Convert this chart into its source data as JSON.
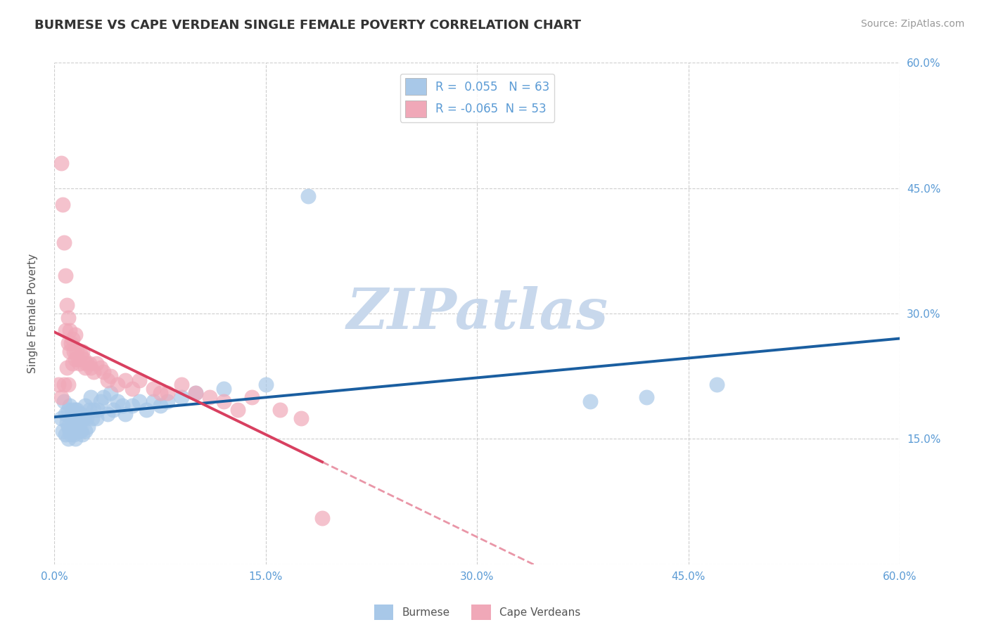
{
  "title": "BURMESE VS CAPE VERDEAN SINGLE FEMALE POVERTY CORRELATION CHART",
  "source": "Source: ZipAtlas.com",
  "ylabel": "Single Female Poverty",
  "xlim": [
    0.0,
    0.6
  ],
  "ylim": [
    0.0,
    0.6
  ],
  "xticks": [
    0.0,
    0.15,
    0.3,
    0.45,
    0.6
  ],
  "xtick_labels": [
    "0.0%",
    "15.0%",
    "30.0%",
    "45.0%",
    "60.0%"
  ],
  "ytick_positions_right": [
    0.15,
    0.3,
    0.45,
    0.6
  ],
  "ytick_labels_right": [
    "15.0%",
    "30.0%",
    "45.0%",
    "60.0%"
  ],
  "burmese_R": 0.055,
  "burmese_N": 63,
  "capeverdean_R": -0.065,
  "capeverdean_N": 53,
  "blue_color": "#A8C8E8",
  "pink_color": "#F0A8B8",
  "blue_line_color": "#1A5EA0",
  "pink_line_color": "#D84060",
  "axis_color": "#5B9BD5",
  "grid_color": "#C8C8C8",
  "watermark": "ZIPatlas",
  "watermark_color": "#C8D8EC",
  "burmese_x": [
    0.005,
    0.006,
    0.007,
    0.008,
    0.008,
    0.009,
    0.01,
    0.01,
    0.01,
    0.011,
    0.011,
    0.012,
    0.012,
    0.013,
    0.013,
    0.014,
    0.014,
    0.015,
    0.015,
    0.015,
    0.016,
    0.016,
    0.017,
    0.017,
    0.018,
    0.018,
    0.019,
    0.019,
    0.02,
    0.02,
    0.021,
    0.022,
    0.022,
    0.023,
    0.024,
    0.025,
    0.026,
    0.027,
    0.028,
    0.03,
    0.031,
    0.033,
    0.035,
    0.038,
    0.04,
    0.042,
    0.045,
    0.048,
    0.05,
    0.055,
    0.06,
    0.065,
    0.07,
    0.075,
    0.08,
    0.09,
    0.1,
    0.12,
    0.15,
    0.18,
    0.38,
    0.42,
    0.47
  ],
  "burmese_y": [
    0.175,
    0.16,
    0.195,
    0.18,
    0.155,
    0.17,
    0.185,
    0.165,
    0.15,
    0.19,
    0.16,
    0.175,
    0.155,
    0.185,
    0.165,
    0.175,
    0.155,
    0.185,
    0.165,
    0.15,
    0.185,
    0.165,
    0.175,
    0.16,
    0.18,
    0.16,
    0.18,
    0.16,
    0.175,
    0.155,
    0.175,
    0.19,
    0.16,
    0.175,
    0.165,
    0.185,
    0.2,
    0.175,
    0.185,
    0.175,
    0.185,
    0.195,
    0.2,
    0.18,
    0.205,
    0.185,
    0.195,
    0.19,
    0.18,
    0.19,
    0.195,
    0.185,
    0.195,
    0.19,
    0.195,
    0.2,
    0.205,
    0.21,
    0.215,
    0.44,
    0.195,
    0.2,
    0.215
  ],
  "capeverdean_x": [
    0.003,
    0.005,
    0.005,
    0.006,
    0.007,
    0.007,
    0.008,
    0.008,
    0.009,
    0.009,
    0.01,
    0.01,
    0.01,
    0.011,
    0.011,
    0.012,
    0.013,
    0.013,
    0.014,
    0.015,
    0.015,
    0.016,
    0.017,
    0.018,
    0.019,
    0.02,
    0.021,
    0.022,
    0.023,
    0.025,
    0.026,
    0.028,
    0.03,
    0.033,
    0.035,
    0.038,
    0.04,
    0.045,
    0.05,
    0.055,
    0.06,
    0.07,
    0.075,
    0.08,
    0.09,
    0.1,
    0.11,
    0.12,
    0.13,
    0.14,
    0.16,
    0.175,
    0.19
  ],
  "capeverdean_y": [
    0.215,
    0.48,
    0.2,
    0.43,
    0.385,
    0.215,
    0.345,
    0.28,
    0.31,
    0.235,
    0.295,
    0.265,
    0.215,
    0.28,
    0.255,
    0.265,
    0.27,
    0.24,
    0.255,
    0.275,
    0.245,
    0.255,
    0.245,
    0.24,
    0.25,
    0.255,
    0.245,
    0.235,
    0.24,
    0.24,
    0.235,
    0.23,
    0.24,
    0.235,
    0.23,
    0.22,
    0.225,
    0.215,
    0.22,
    0.21,
    0.22,
    0.21,
    0.205,
    0.205,
    0.215,
    0.205,
    0.2,
    0.195,
    0.185,
    0.2,
    0.185,
    0.175,
    0.055
  ]
}
